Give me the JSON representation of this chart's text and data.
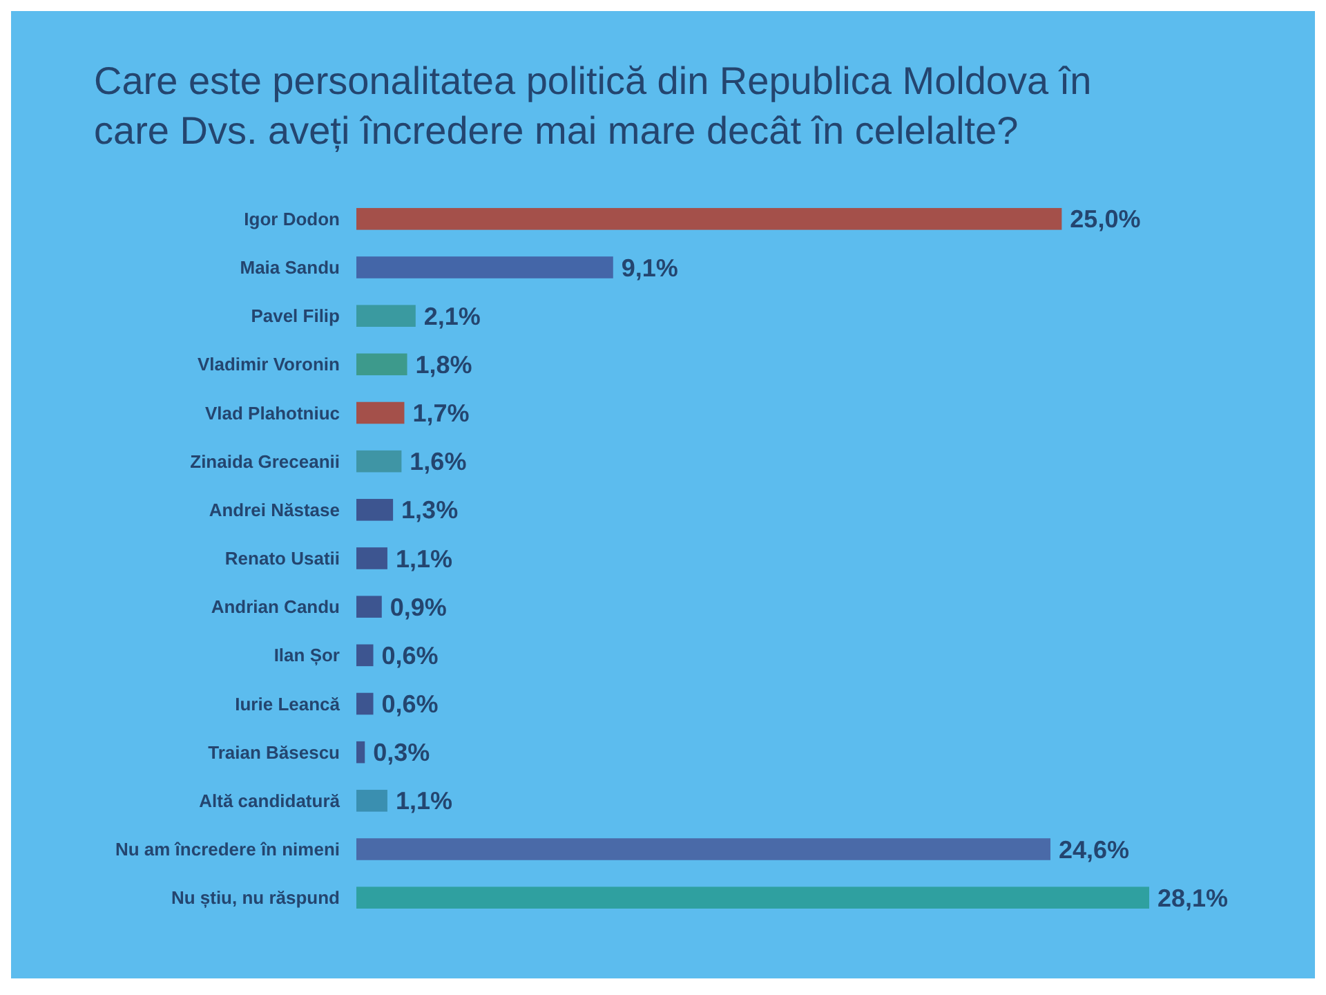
{
  "chart_data": {
    "type": "bar",
    "orientation": "horizontal",
    "title": "Care este personalitatea politică din Republica Moldova în care Dvs. aveți încredere mai mare decât în celelalte?",
    "categories": [
      "Igor Dodon",
      "Maia Sandu",
      "Pavel Filip",
      "Vladimir Voronin",
      "Vlad Plahotniuc",
      "Zinaida Greceanii",
      "Andrei Năstase",
      "Renato Usatii",
      "Andrian Candu",
      "Ilan Șor",
      "Iurie Leancă",
      "Traian Băsescu",
      "Altă candidatură",
      "Nu am încredere în nimeni",
      "Nu știu, nu răspund"
    ],
    "values": [
      25.0,
      9.1,
      2.1,
      1.8,
      1.7,
      1.6,
      1.3,
      1.1,
      0.9,
      0.6,
      0.6,
      0.3,
      1.1,
      24.6,
      28.1
    ],
    "colors": [
      "#a4504a",
      "#4466a8",
      "#3a9aa0",
      "#3d9a8c",
      "#a4504a",
      "#3f95a5",
      "#3d5590",
      "#3d5590",
      "#3d5590",
      "#3d5590",
      "#3d5590",
      "#3d5590",
      "#3a8fb0",
      "#4a6aa8",
      "#2fa0a0"
    ],
    "value_labels": [
      "25,0%",
      "9,1%",
      "2,1%",
      "1,8%",
      "1,7%",
      "1,6%",
      "1,3%",
      "1,1%",
      "0,9%",
      "0,6%",
      "0,6%",
      "0,3%",
      "1,1%",
      "24,6%",
      "28,1%"
    ]
  }
}
